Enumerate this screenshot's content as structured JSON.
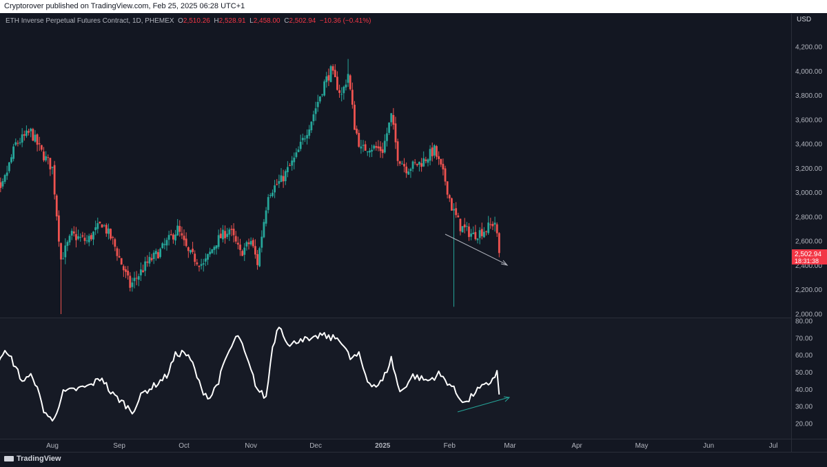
{
  "header": {
    "published": "Cryptorover published on TradingView.com, Feb 25, 2025 06:28 UTC+1"
  },
  "legend": {
    "symbol": "ETH Inverse Perpetual Futures Contract, 1D, PHEMEX",
    "o_label": "O",
    "o": "2,510.26",
    "h_label": "H",
    "h": "2,528.91",
    "l_label": "L",
    "l": "2,458.00",
    "c_label": "C",
    "c": "2,502.94",
    "change": "−10.36 (−0.41%)"
  },
  "currency": "USD",
  "price_tag": {
    "price": "2,502.94",
    "countdown": "18:31:38"
  },
  "footer": {
    "brand": "TradingView"
  },
  "colors": {
    "up": "#26a69a",
    "down": "#ef5350",
    "background": "#131722",
    "rsi": "#ffffff",
    "tag": "#f23645"
  },
  "chart_data": [
    {
      "type": "candlestick",
      "title": "ETH Inverse Perpetual Futures Contract, 1D, PHEMEX",
      "ylim": [
        2000,
        4300
      ],
      "y_ticks": [
        "4,200.00",
        "4,000.00",
        "3,800.00",
        "3,600.00",
        "3,400.00",
        "3,200.00",
        "3,000.00",
        "2,800.00",
        "2,600.00",
        "2,400.00",
        "2,200.00",
        "2,000.00"
      ],
      "x_ticks": [
        "Aug",
        "Sep",
        "Oct",
        "Nov",
        "Dec",
        "2025",
        "Feb",
        "Mar",
        "Apr",
        "May",
        "Jun",
        "Jul"
      ],
      "grid": false,
      "anchors": [
        [
          "2024-07-02",
          3250
        ],
        [
          "2024-07-08",
          3000
        ],
        [
          "2024-07-15",
          3400
        ],
        [
          "2024-07-22",
          3500
        ],
        [
          "2024-07-27",
          3330
        ],
        [
          "2024-08-01",
          3200
        ],
        [
          "2024-08-05",
          2450
        ],
        [
          "2024-08-10",
          2650
        ],
        [
          "2024-08-17",
          2600
        ],
        [
          "2024-08-24",
          2750
        ],
        [
          "2024-08-29",
          2600
        ],
        [
          "2024-09-06",
          2230
        ],
        [
          "2024-09-14",
          2420
        ],
        [
          "2024-09-20",
          2520
        ],
        [
          "2024-09-28",
          2700
        ],
        [
          "2024-10-03",
          2500
        ],
        [
          "2024-10-10",
          2400
        ],
        [
          "2024-10-16",
          2600
        ],
        [
          "2024-10-22",
          2700
        ],
        [
          "2024-10-27",
          2500
        ],
        [
          "2024-11-01",
          2600
        ],
        [
          "2024-11-04",
          2420
        ],
        [
          "2024-11-09",
          3000
        ],
        [
          "2024-11-15",
          3100
        ],
        [
          "2024-11-22",
          3300
        ],
        [
          "2024-11-29",
          3600
        ],
        [
          "2024-12-05",
          3900
        ],
        [
          "2024-12-08",
          4000
        ],
        [
          "2024-12-13",
          3800
        ],
        [
          "2024-12-16",
          3980
        ],
        [
          "2024-12-19",
          3550
        ],
        [
          "2024-12-22",
          3350
        ],
        [
          "2024-12-26",
          3380
        ],
        [
          "2025-01-01",
          3350
        ],
        [
          "2025-01-05",
          3630
        ],
        [
          "2025-01-08",
          3300
        ],
        [
          "2025-01-12",
          3200
        ],
        [
          "2025-01-19",
          3250
        ],
        [
          "2025-01-25",
          3350
        ],
        [
          "2025-01-30",
          3100
        ],
        [
          "2025-02-02",
          2880
        ],
        [
          "2025-02-06",
          2720
        ],
        [
          "2025-02-12",
          2650
        ],
        [
          "2025-02-18",
          2700
        ],
        [
          "2025-02-22",
          2760
        ],
        [
          "2025-02-24",
          2502.94
        ]
      ]
    },
    {
      "type": "line",
      "series": [
        {
          "name": "",
          "values_from": "anchors"
        }
      ],
      "ylim": [
        12,
        82
      ],
      "y_ticks": [
        "80.00",
        "70.00",
        "60.00",
        "50.00",
        "40.00",
        "30.00",
        "20.00"
      ],
      "anchors": [
        [
          "2024-07-01",
          38
        ],
        [
          "2024-07-05",
          52
        ],
        [
          "2024-07-09",
          62
        ],
        [
          "2024-07-13",
          58
        ],
        [
          "2024-07-18",
          45
        ],
        [
          "2024-07-23",
          48
        ],
        [
          "2024-07-28",
          28
        ],
        [
          "2024-08-01",
          21
        ],
        [
          "2024-08-06",
          38
        ],
        [
          "2024-08-12",
          40
        ],
        [
          "2024-08-18",
          42
        ],
        [
          "2024-08-24",
          47
        ],
        [
          "2024-08-28",
          38
        ],
        [
          "2024-09-03",
          32
        ],
        [
          "2024-09-07",
          27
        ],
        [
          "2024-09-12",
          38
        ],
        [
          "2024-09-17",
          42
        ],
        [
          "2024-09-23",
          48
        ],
        [
          "2024-09-27",
          60
        ],
        [
          "2024-10-01",
          62
        ],
        [
          "2024-10-05",
          55
        ],
        [
          "2024-10-09",
          40
        ],
        [
          "2024-10-13",
          35
        ],
        [
          "2024-10-17",
          45
        ],
        [
          "2024-10-21",
          60
        ],
        [
          "2024-10-26",
          72
        ],
        [
          "2024-10-30",
          58
        ],
        [
          "2024-11-04",
          40
        ],
        [
          "2024-11-08",
          35
        ],
        [
          "2024-11-11",
          65
        ],
        [
          "2024-11-14",
          78
        ],
        [
          "2024-11-19",
          65
        ],
        [
          "2024-11-24",
          70
        ],
        [
          "2024-11-29",
          68
        ],
        [
          "2024-12-03",
          72
        ],
        [
          "2024-12-08",
          70
        ],
        [
          "2024-12-12",
          70
        ],
        [
          "2024-12-17",
          58
        ],
        [
          "2024-12-21",
          60
        ],
        [
          "2024-12-25",
          45
        ],
        [
          "2024-12-29",
          42
        ],
        [
          "2025-01-01",
          45
        ],
        [
          "2025-01-05",
          58
        ],
        [
          "2025-01-09",
          38
        ],
        [
          "2025-01-15",
          48
        ],
        [
          "2025-01-22",
          45
        ],
        [
          "2025-01-27",
          49
        ],
        [
          "2025-02-02",
          42
        ],
        [
          "2025-02-05",
          36
        ],
        [
          "2025-02-09",
          32
        ],
        [
          "2025-02-13",
          39
        ],
        [
          "2025-02-19",
          43
        ],
        [
          "2025-02-23",
          50
        ],
        [
          "2025-02-24",
          37
        ]
      ]
    }
  ]
}
